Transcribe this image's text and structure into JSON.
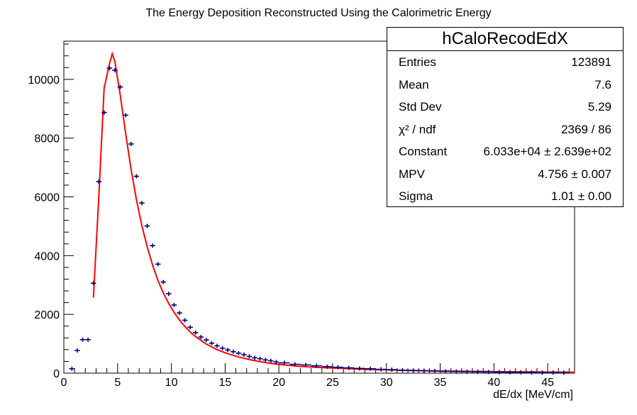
{
  "chart_data": {
    "type": "histogram",
    "title": "The Energy Deposition Reconstructed Using the Calorimetric Energy",
    "xlabel": "dE/dx [MeV/cm]",
    "ylabel": "",
    "xlim": [
      0,
      47.5
    ],
    "ylim": [
      0,
      11300
    ],
    "xticks": [
      "0",
      "5",
      "10",
      "15",
      "20",
      "25",
      "30",
      "35",
      "40",
      "45"
    ],
    "yticks": [
      "0",
      "2000",
      "4000",
      "6000",
      "8000",
      "10000"
    ],
    "grid": false,
    "series": [
      {
        "kind": "data-points",
        "color": "#000080",
        "bin_width": 0.5,
        "x": [
          0.75,
          1.25,
          1.75,
          2.25,
          2.75,
          3.25,
          3.75,
          4.25,
          4.75,
          5.25,
          5.75,
          6.25,
          6.75,
          7.25,
          7.75,
          8.25,
          8.75,
          9.25,
          9.75,
          10.25,
          10.75,
          11.25,
          11.75,
          12.25,
          12.75,
          13.25,
          13.75,
          14.25,
          14.75,
          15.25,
          15.75,
          16.25,
          16.75,
          17.25,
          17.75,
          18.25,
          18.75,
          19.25,
          19.75,
          20.5,
          21.5,
          22.5,
          23.5,
          24.5,
          25.5,
          26.5,
          27.5,
          28.5,
          29.5,
          30.5,
          31.5,
          32.5,
          33.5,
          34.5,
          35.5,
          36.5,
          37.5,
          38.5,
          39.5,
          40.5,
          41.5,
          42.5,
          43.5,
          44.5,
          45.5,
          46.5
        ],
        "y": [
          150,
          770,
          1140,
          1140,
          3060,
          6520,
          8870,
          10380,
          10310,
          9740,
          8780,
          7800,
          6700,
          5790,
          5010,
          4340,
          3710,
          3100,
          2700,
          2320,
          2050,
          1800,
          1560,
          1380,
          1230,
          1130,
          1020,
          930,
          850,
          790,
          730,
          680,
          630,
          570,
          520,
          490,
          450,
          420,
          380,
          350,
          300,
          280,
          250,
          220,
          200,
          180,
          160,
          150,
          130,
          120,
          100,
          90,
          80,
          70,
          60,
          55,
          50,
          45,
          40,
          35,
          30,
          30,
          25,
          20,
          20,
          15
        ]
      },
      {
        "kind": "fit",
        "color": "#ff0000",
        "x": [
          2.75,
          3.25,
          3.75,
          4.25,
          4.5,
          4.75,
          5.25,
          5.75,
          6.25,
          6.75,
          7.25,
          7.75,
          8.25,
          8.75,
          9.25,
          9.75,
          10.25,
          10.75,
          11.25,
          11.75,
          12.25,
          13.25,
          14.25,
          15.25,
          16.25,
          17.25,
          18.25,
          19.25,
          20.25,
          22,
          24,
          26,
          28,
          30,
          32,
          34,
          36,
          38,
          40,
          42,
          44,
          46,
          47.5
        ],
        "y": [
          2570,
          6000,
          9700,
          10530,
          10870,
          10600,
          9450,
          8150,
          6950,
          5910,
          5030,
          4300,
          3680,
          3160,
          2730,
          2370,
          2070,
          1810,
          1590,
          1400,
          1240,
          990,
          800,
          660,
          550,
          460,
          390,
          330,
          290,
          230,
          190,
          160,
          130,
          110,
          95,
          80,
          70,
          60,
          50,
          45,
          40,
          35,
          30
        ]
      }
    ]
  },
  "stats_box": {
    "name": "hCaloRecodEdX",
    "rows": [
      {
        "label": "Entries",
        "value": "123891"
      },
      {
        "label": "Mean",
        "value": "7.6"
      },
      {
        "label": "Std Dev",
        "value": "5.29"
      },
      {
        "label": "χ² / ndf",
        "value": "2369 / 86"
      },
      {
        "label": "Constant",
        "value": "6.033e+04 ± 2.639e+02"
      },
      {
        "label": "MPV",
        "value": "4.756 ± 0.007"
      },
      {
        "label": "Sigma",
        "value": "1.01 ± 0.00"
      }
    ]
  }
}
